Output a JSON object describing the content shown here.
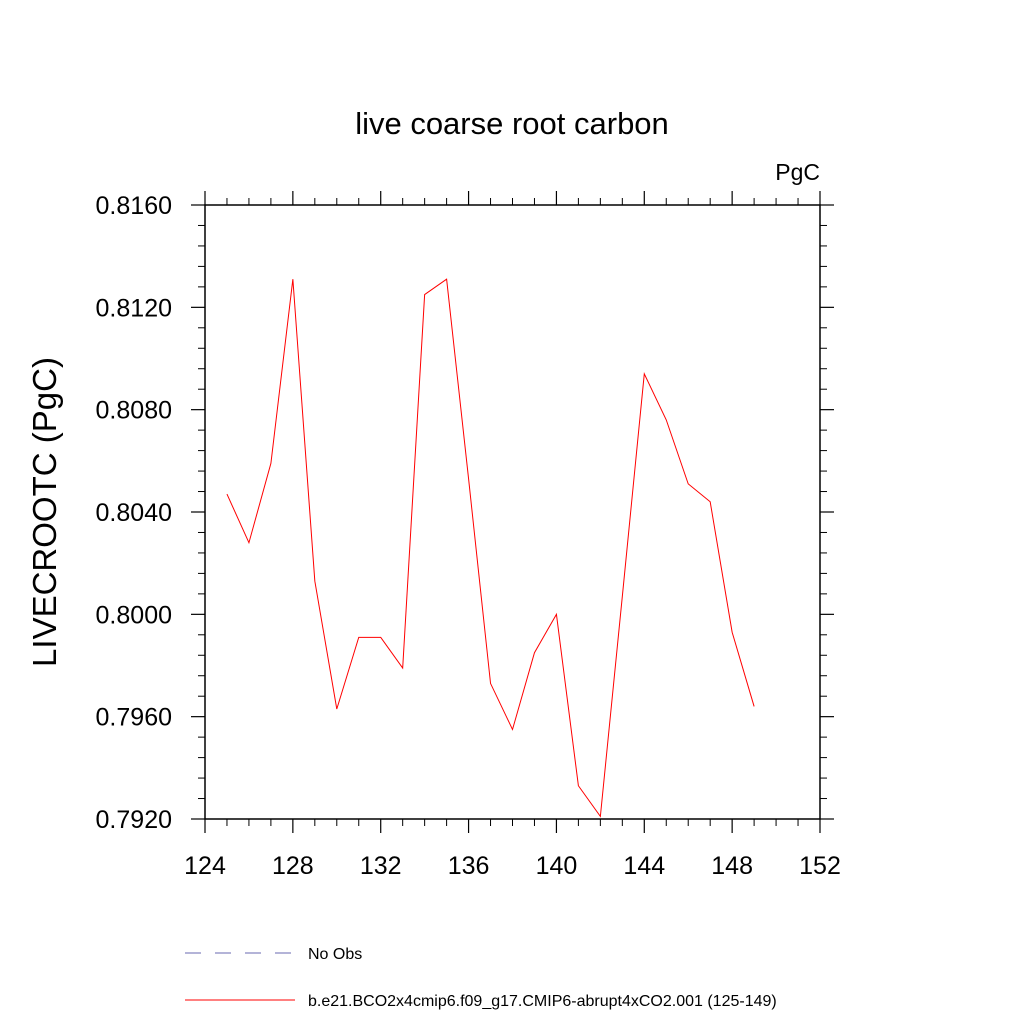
{
  "chart_data": {
    "type": "line",
    "title": "live coarse root carbon",
    "units_label": "PgC",
    "ylabel": "LIVECROOTC  (PgC)",
    "xlabel": "",
    "xlim": [
      124,
      152
    ],
    "ylim": [
      0.792,
      0.816
    ],
    "x_ticks": [
      124,
      128,
      132,
      136,
      140,
      144,
      148,
      152
    ],
    "x_tick_labels": [
      "124",
      "128",
      "132",
      "136",
      "140",
      "144",
      "148",
      "152"
    ],
    "y_ticks": [
      0.792,
      0.796,
      0.8,
      0.804,
      0.808,
      0.812,
      0.816
    ],
    "y_tick_labels": [
      "0.7920",
      "0.7960",
      "0.8000",
      "0.8040",
      "0.8080",
      "0.8120",
      "0.8160"
    ],
    "grid": false,
    "legend_placement": "bottom",
    "series": [
      {
        "name": "No Obs",
        "color": "#6a6ab0",
        "dash": "dashed",
        "x": [],
        "values": []
      },
      {
        "name": "b.e21.BCO2x4cmip6.f09_g17.CMIP6-abrupt4xCO2.001 (125-149)",
        "color": "#ff0000",
        "dash": "solid",
        "x": [
          125,
          126,
          127,
          128,
          129,
          130,
          131,
          132,
          133,
          134,
          135,
          136,
          137,
          138,
          139,
          140,
          141,
          142,
          143,
          144,
          145,
          146,
          147,
          148,
          149
        ],
        "values": [
          0.8047,
          0.8028,
          0.8059,
          0.8131,
          0.8013,
          0.7963,
          0.7991,
          0.7991,
          0.7979,
          0.8125,
          0.8131,
          0.8053,
          0.7973,
          0.7955,
          0.7985,
          0.8,
          0.7933,
          0.7921,
          0.8007,
          0.8094,
          0.8076,
          0.8051,
          0.8044,
          0.7993,
          0.7964
        ]
      }
    ]
  }
}
